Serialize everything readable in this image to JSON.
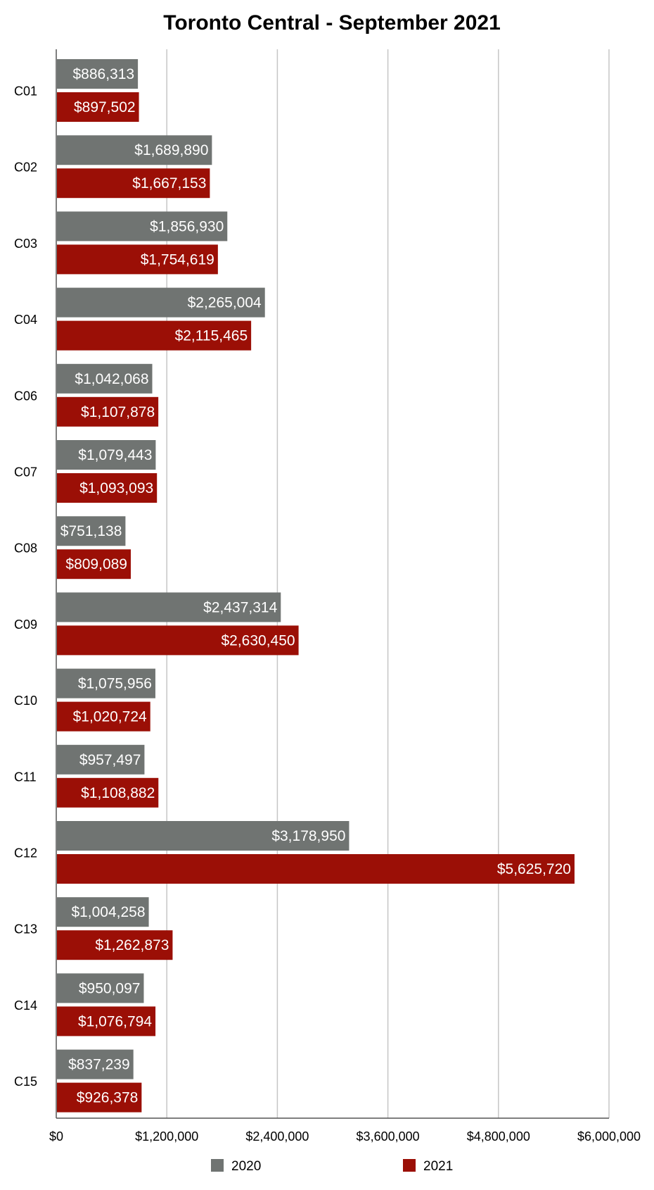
{
  "chart_data": {
    "type": "bar",
    "orientation": "horizontal",
    "title": "Toronto Central - September 2021",
    "xlabel": "",
    "ylabel": "",
    "xlim": [
      0,
      6000000
    ],
    "ticks": [
      "$0",
      "$1,200,000",
      "$2,400,000",
      "$3,600,000",
      "$4,800,000",
      "$6,000,000"
    ],
    "tick_values": [
      0,
      1200000,
      2400000,
      3600000,
      4800000,
      6000000
    ],
    "grid": true,
    "legend_position": "bottom",
    "categories": [
      "C01",
      "C02",
      "C03",
      "C04",
      "C06",
      "C07",
      "C08",
      "C09",
      "C10",
      "C11",
      "C12",
      "C13",
      "C14",
      "C15"
    ],
    "series": [
      {
        "name": "2020",
        "color": "#707472",
        "values": [
          886313,
          1689890,
          1856930,
          2265004,
          1042068,
          1079443,
          751138,
          2437314,
          1075956,
          957497,
          3178950,
          1004258,
          950097,
          837239
        ],
        "labels": [
          "$886,313",
          "$1,689,890",
          "$1,856,930",
          "$2,265,004",
          "$1,042,068",
          "$1,079,443",
          "$751,138",
          "$2,437,314",
          "$1,075,956",
          "$957,497",
          "$3,178,950",
          "$1,004,258",
          "$950,097",
          "$837,239"
        ]
      },
      {
        "name": "2021",
        "color": "#9b0f06",
        "values": [
          897502,
          1667153,
          1754619,
          2115465,
          1107878,
          1093093,
          809089,
          2630450,
          1020724,
          1108882,
          5625720,
          1262873,
          1076794,
          926378
        ],
        "labels": [
          "$897,502",
          "$1,667,153",
          "$1,754,619",
          "$2,115,465",
          "$1,107,878",
          "$1,093,093",
          "$809,089",
          "$2,630,450",
          "$1,020,724",
          "$1,108,882",
          "$5,625,720",
          "$1,262,873",
          "$1,076,794",
          "$926,378"
        ]
      }
    ]
  }
}
